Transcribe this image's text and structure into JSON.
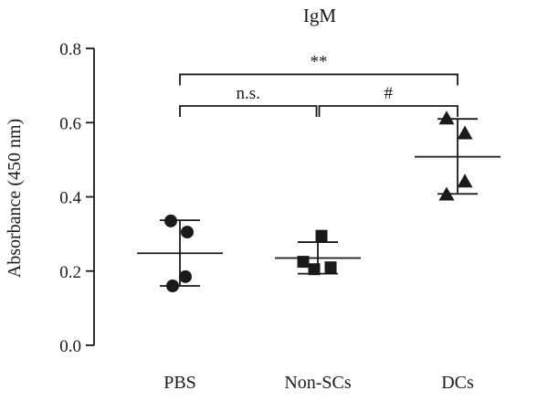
{
  "chart_data": {
    "type": "scatter",
    "title": "IgM",
    "xlabel": "",
    "ylabel": "Absorbance (450 nm)",
    "ylim": [
      0.0,
      0.8
    ],
    "yticks": [
      0.0,
      0.2,
      0.4,
      0.6,
      0.8
    ],
    "ytick_labels": [
      "0.0",
      "0.2",
      "0.4",
      "0.6",
      "0.8"
    ],
    "categories": [
      "PBS",
      "Non-SCs",
      "DCs"
    ],
    "grid": false,
    "series": [
      {
        "category": "PBS",
        "marker": "circle",
        "points": [
          0.335,
          0.305,
          0.185,
          0.16
        ],
        "mean": 0.248,
        "sd_upper": 0.337,
        "sd_lower": 0.16
      },
      {
        "category": "Non-SCs",
        "marker": "square",
        "points": [
          0.295,
          0.225,
          0.205,
          0.21
        ],
        "mean": 0.235,
        "sd_upper": 0.278,
        "sd_lower": 0.193
      },
      {
        "category": "DCs",
        "marker": "triangle",
        "points": [
          0.61,
          0.57,
          0.44,
          0.405
        ],
        "mean": 0.508,
        "sd_upper": 0.61,
        "sd_lower": 0.408
      }
    ],
    "significance": [
      {
        "from": "PBS",
        "to": "DCs",
        "label": "**",
        "y": 0.73
      },
      {
        "from": "PBS",
        "to": "Non-SCs",
        "label": "n.s.",
        "y": 0.645
      },
      {
        "from": "Non-SCs",
        "to": "DCs",
        "label": "#",
        "y": 0.645
      }
    ],
    "colors": {
      "marker": "#1a1a1a",
      "line": "#1a1a1a"
    }
  }
}
